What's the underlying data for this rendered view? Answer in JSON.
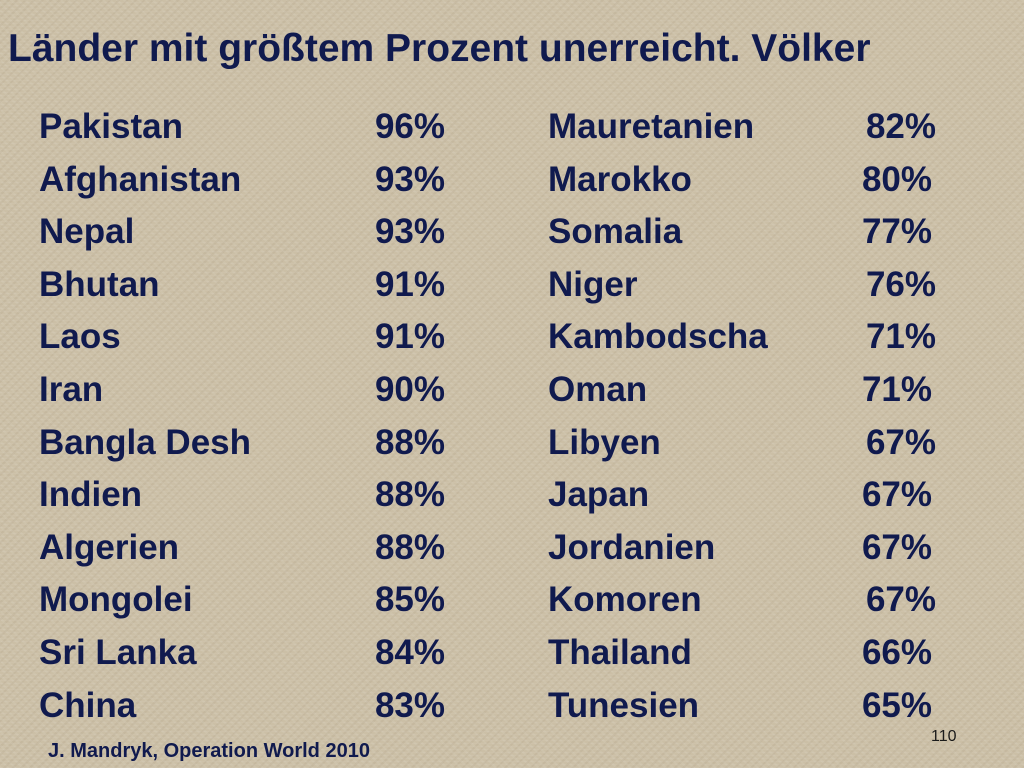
{
  "title": "Länder mit größtem Prozent unerreicht. Völker",
  "left_column": [
    {
      "country": "Pakistan",
      "percent": "96%"
    },
    {
      "country": "Afghanistan",
      "percent": "93%"
    },
    {
      "country": "Nepal",
      "percent": "93%"
    },
    {
      "country": "Bhutan",
      "percent": "91%"
    },
    {
      "country": "Laos",
      "percent": "91%"
    },
    {
      "country": "Iran",
      "percent": "90%"
    },
    {
      "country": "Bangla Desh",
      "percent": "88%"
    },
    {
      "country": "Indien",
      "percent": "88%"
    },
    {
      "country": "Algerien",
      "percent": "88%"
    },
    {
      "country": "Mongolei",
      "percent": "85%"
    },
    {
      "country": "Sri Lanka",
      "percent": "84%"
    },
    {
      "country": "China",
      "percent": "83%"
    }
  ],
  "right_column": [
    {
      "country": "Mauretanien",
      "percent": "82%"
    },
    {
      "country": "Marokko",
      "percent": "80%"
    },
    {
      "country": "Somalia",
      "percent": "77%"
    },
    {
      "country": "Niger",
      "percent": "76%"
    },
    {
      "country": "Kambodscha",
      "percent": "71%"
    },
    {
      "country": "Oman",
      "percent": "71%"
    },
    {
      "country": "Libyen",
      "percent": "67%"
    },
    {
      "country": "Japan",
      "percent": "67%"
    },
    {
      "country": "Jordanien",
      "percent": "67%"
    },
    {
      "country": "Komoren",
      "percent": "67%"
    },
    {
      "country": "Thailand",
      "percent": "66%"
    },
    {
      "country": "Tunesien",
      "percent": "65%"
    }
  ],
  "source": "J. Mandryk, Operation World 2010",
  "page_number": "110",
  "colors": {
    "text": "#101a4e",
    "background": "#cbbfa6"
  }
}
